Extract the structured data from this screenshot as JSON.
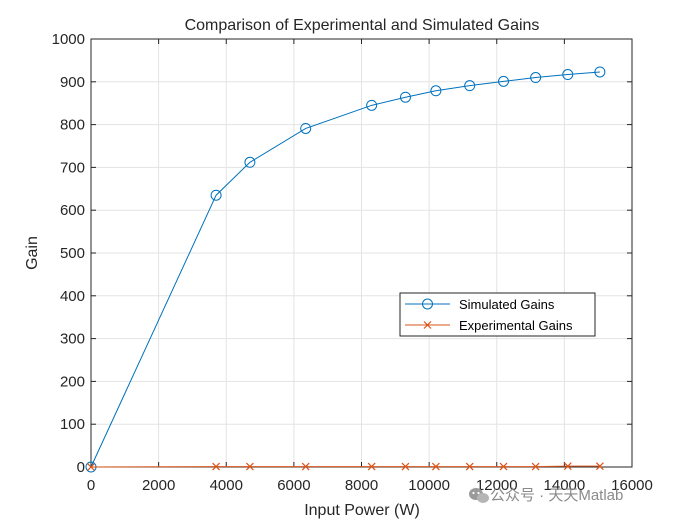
{
  "chart_data": {
    "type": "line",
    "title": "Comparison of Experimental and Simulated Gains",
    "xlabel": "Input Power (W)",
    "ylabel": "Gain",
    "xlim": [
      0,
      16000
    ],
    "ylim": [
      0,
      1000
    ],
    "xticks": [
      0,
      2000,
      4000,
      6000,
      8000,
      10000,
      12000,
      14000,
      16000
    ],
    "yticks": [
      0,
      100,
      200,
      300,
      400,
      500,
      600,
      700,
      800,
      900,
      1000
    ],
    "grid": true,
    "legend_position": "right-center",
    "series": [
      {
        "name": "Simulated Gains",
        "color": "#0072BD",
        "marker": "circle",
        "x": [
          0,
          3700,
          4700,
          6350,
          8300,
          9300,
          10200,
          11200,
          12200,
          13150,
          14100,
          15050
        ],
        "y": [
          0,
          635,
          712,
          791,
          845,
          864,
          879,
          891,
          901,
          910,
          917,
          923
        ]
      },
      {
        "name": "Experimental Gains",
        "color": "#D95319",
        "marker": "x",
        "x": [
          0,
          3700,
          4700,
          6350,
          8300,
          9300,
          10200,
          11200,
          12200,
          13150,
          14100,
          15050
        ],
        "y": [
          0,
          1,
          1,
          1,
          1,
          1,
          1,
          1,
          1,
          1,
          2,
          2
        ]
      }
    ]
  },
  "watermark": {
    "text": "公众号 · 天天Matlab",
    "icon": "wechat-icon"
  }
}
